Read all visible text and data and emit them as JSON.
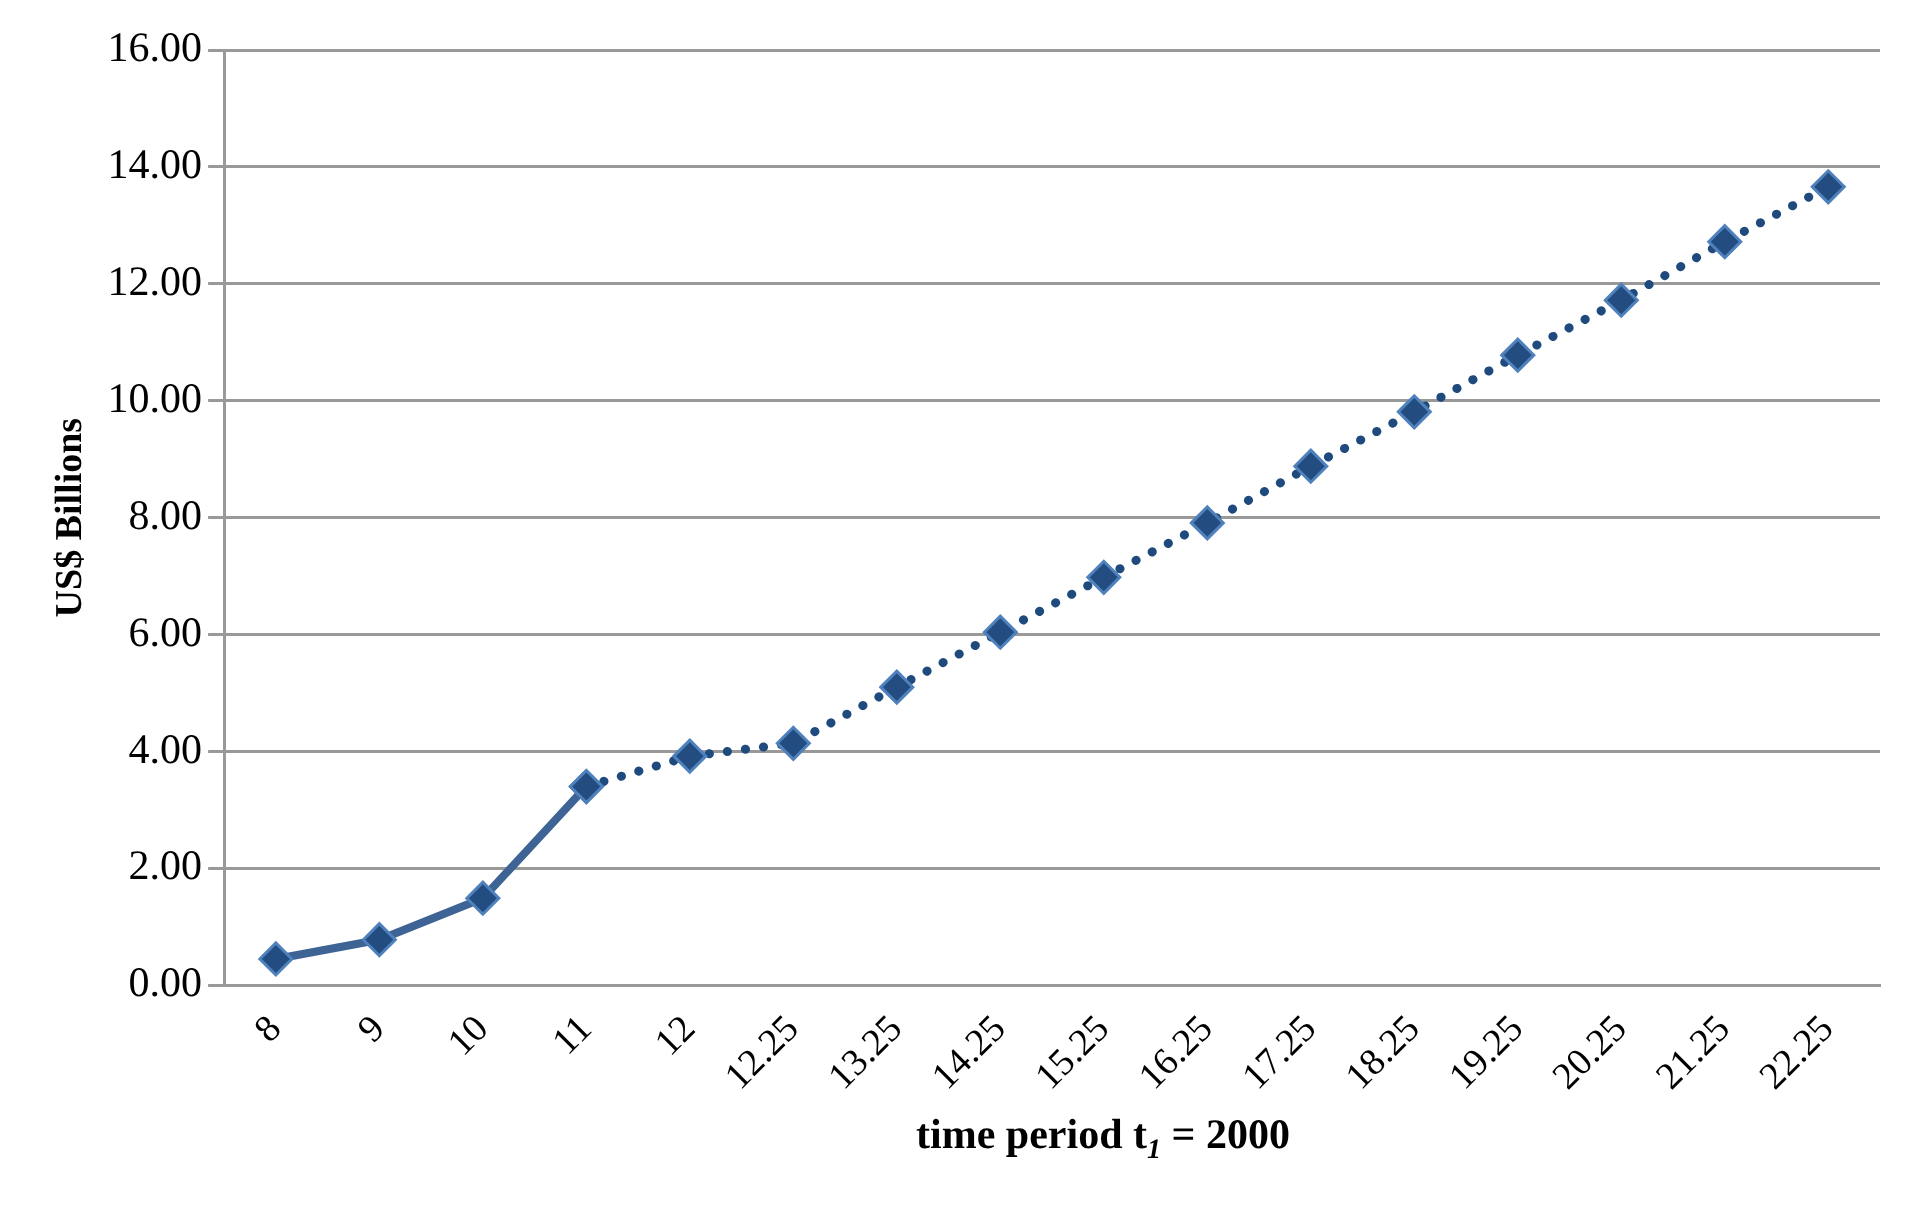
{
  "chart_data": {
    "type": "line",
    "xlabel": "time period t$_{1}$ = 2000",
    "ylabel": "US$ Billions",
    "categories": [
      "8",
      "9",
      "10",
      "11",
      "12",
      "12.25",
      "13.25",
      "14.25",
      "15.25",
      "16.25",
      "17.25",
      "18.25",
      "19.25",
      "20.25",
      "21.25",
      "22.25"
    ],
    "series": [
      {
        "color": "#3d6494",
        "line_style": "solid",
        "values": [
          0.45,
          0.78,
          1.49,
          3.4,
          null,
          null,
          null,
          null,
          null,
          null,
          null,
          null,
          null,
          null,
          null,
          null
        ]
      },
      {
        "color": "#1f4a7e",
        "line_style": "dotted",
        "values": [
          null,
          null,
          null,
          3.4,
          3.92,
          4.14,
          5.1,
          6.04,
          6.98,
          7.91,
          8.88,
          9.81,
          10.78,
          11.72,
          12.72,
          13.66
        ]
      }
    ],
    "ylim": [
      0,
      16
    ],
    "yticks": [
      {
        "value": 0,
        "label": "0.00"
      },
      {
        "value": 2,
        "label": "2.00"
      },
      {
        "value": 4,
        "label": "4.00"
      },
      {
        "value": 6,
        "label": "6.00"
      },
      {
        "value": 8,
        "label": "8.00"
      },
      {
        "value": 10,
        "label": "10.00"
      },
      {
        "value": 12,
        "label": "12.00"
      },
      {
        "value": 14,
        "label": "14.00"
      },
      {
        "value": 16,
        "label": "16.00"
      }
    ],
    "grid": "y",
    "legend": false,
    "marker": "diamond"
  }
}
